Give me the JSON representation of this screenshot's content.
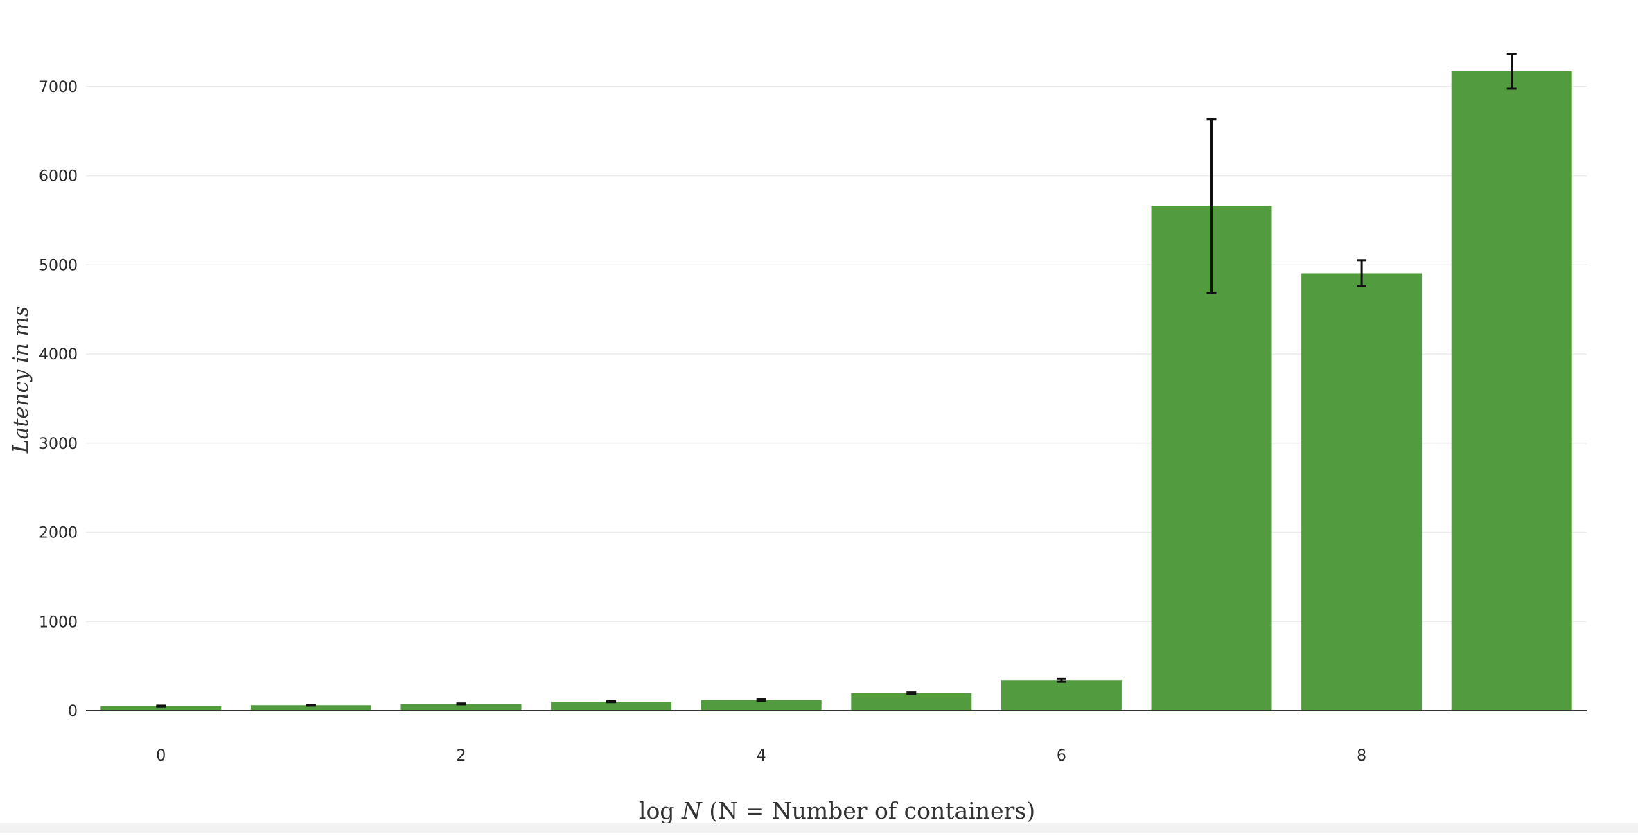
{
  "chart_data": {
    "type": "bar",
    "x": [
      0,
      1,
      2,
      3,
      4,
      5,
      6,
      7,
      8,
      9
    ],
    "values": [
      50,
      60,
      75,
      100,
      120,
      195,
      340,
      5660,
      4905,
      7170
    ],
    "error": [
      5,
      5,
      5,
      5,
      8,
      10,
      15,
      975,
      145,
      195
    ],
    "title": "",
    "xlabel": {
      "prefix": "log ",
      "var": "N",
      "suffix": " (N = Number of containers)"
    },
    "ylabel": "Latency in ms",
    "xticks": [
      0,
      2,
      4,
      6,
      8
    ],
    "yticks": [
      0,
      1000,
      2000,
      3000,
      4000,
      5000,
      6000,
      7000
    ],
    "ylim": [
      0,
      7500
    ],
    "grid": "horizontal",
    "legend": "none",
    "colors": {
      "bar": "#529c3f",
      "error_bar": "#111111",
      "grid": "#ebebeb",
      "axis": "#333333"
    }
  }
}
